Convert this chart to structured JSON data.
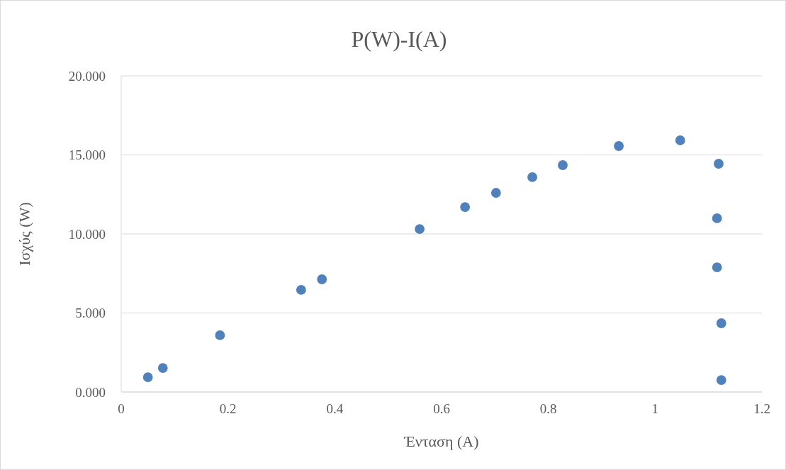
{
  "chart_data": {
    "type": "scatter",
    "title": "P(W)-I(A)",
    "xlabel": "Ένταση (A)",
    "ylabel": "Ισχύς (W)",
    "x": [
      0.05,
      0.078,
      0.185,
      0.337,
      0.376,
      0.559,
      0.644,
      0.702,
      0.77,
      0.827,
      0.932,
      1.047,
      1.119,
      1.116,
      1.116,
      1.124,
      1.124
    ],
    "series": [
      {
        "color": "#4f81bd",
        "values": [
          0.94,
          1.52,
          3.59,
          6.46,
          7.13,
          10.31,
          11.7,
          12.6,
          13.59,
          14.35,
          15.56,
          15.92,
          14.44,
          10.99,
          7.89,
          4.35,
          0.76
        ]
      }
    ],
    "xlim": [
      0,
      1.2
    ],
    "xticks": [
      0,
      0.2,
      0.4,
      0.6,
      0.8,
      1,
      1.2
    ],
    "ylim": [
      0,
      20
    ],
    "yticks": [
      {
        "value": 0,
        "label": "0.000"
      },
      {
        "value": 5,
        "label": "5.000"
      },
      {
        "value": 10,
        "label": "10.000"
      },
      {
        "value": 15,
        "label": "15.000"
      },
      {
        "value": 20,
        "label": "20.000"
      }
    ],
    "grid": "y",
    "marker": "circle"
  }
}
